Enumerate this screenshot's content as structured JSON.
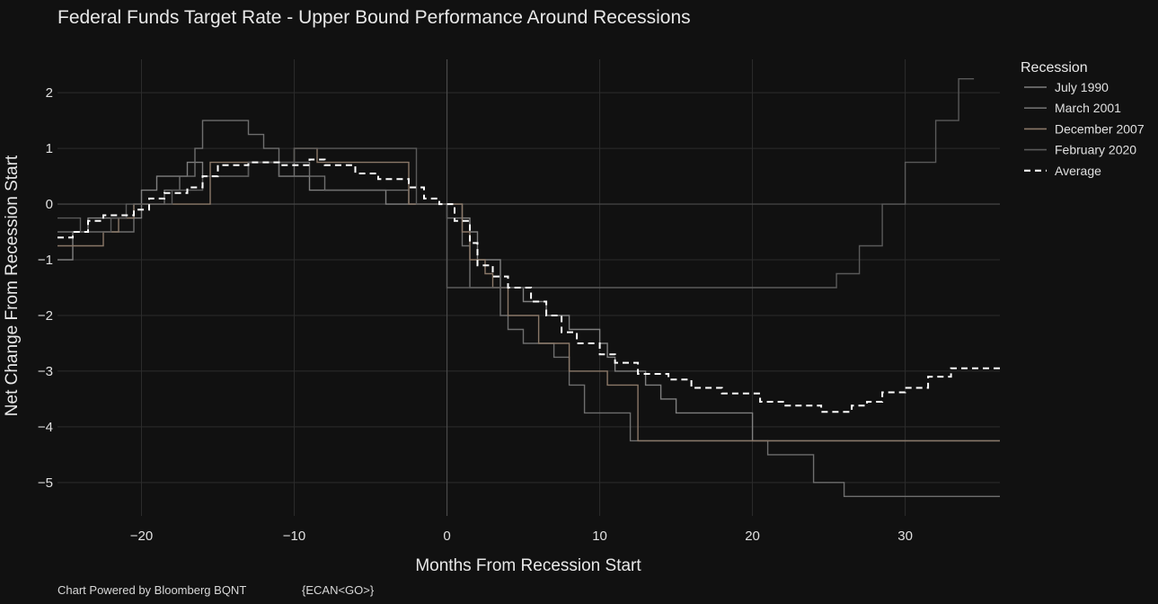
{
  "chart_data": {
    "type": "line",
    "title": "Federal Funds Target Rate - Upper Bound Performance Around Recessions",
    "xlabel": "Months From Recession Start",
    "ylabel": "Net Change From Recession Start",
    "xlim": [
      -25.5,
      36.2
    ],
    "ylim": [
      -5.6,
      2.6
    ],
    "xticks": [
      -20,
      -10,
      0,
      10,
      20,
      30
    ],
    "xtick_labels": [
      "−20",
      "−10",
      "0",
      "10",
      "20",
      "30"
    ],
    "yticks": [
      2,
      1,
      0,
      -1,
      -2,
      -3,
      -4,
      -5
    ],
    "ytick_labels": [
      "2",
      "1",
      "0",
      "−1",
      "−2",
      "−3",
      "−4",
      "−5"
    ],
    "grid": true,
    "legend_title": "Recession",
    "legend_position": "right",
    "series": [
      {
        "name": "July 1990",
        "color": "#7f7f7f",
        "points": [
          [
            -25.5,
            -1
          ],
          [
            -24.5,
            -1
          ],
          [
            -24.5,
            -0.5
          ],
          [
            -23.5,
            -0.5
          ],
          [
            -23.5,
            -0.25
          ],
          [
            -20,
            -0.25
          ],
          [
            -20,
            0.25
          ],
          [
            -19,
            0.25
          ],
          [
            -19,
            0.5
          ],
          [
            -17,
            0.5
          ],
          [
            -17,
            0.75
          ],
          [
            -16,
            0.75
          ],
          [
            -16,
            0.5
          ],
          [
            -13,
            0.5
          ],
          [
            -13,
            0.75
          ],
          [
            -11,
            0.75
          ],
          [
            -11,
            0.5
          ],
          [
            -9,
            0.5
          ],
          [
            -9,
            0.25
          ],
          [
            -4,
            0.25
          ],
          [
            -4,
            0
          ],
          [
            1,
            0
          ],
          [
            1,
            -0.25
          ],
          [
            1.5,
            -0.25
          ],
          [
            1.5,
            -0.5
          ],
          [
            2,
            -0.5
          ],
          [
            2,
            -1
          ],
          [
            3.5,
            -1
          ],
          [
            3.5,
            -1.5
          ],
          [
            5,
            -1.5
          ],
          [
            5,
            -1.75
          ],
          [
            6.5,
            -1.75
          ],
          [
            6.5,
            -2
          ],
          [
            8,
            -2
          ],
          [
            8,
            -2.25
          ],
          [
            10,
            -2.25
          ],
          [
            10,
            -2.5
          ],
          [
            10.5,
            -2.5
          ],
          [
            10.5,
            -2.75
          ],
          [
            11,
            -2.75
          ],
          [
            11,
            -3
          ],
          [
            13,
            -3
          ],
          [
            13,
            -3.25
          ],
          [
            14,
            -3.25
          ],
          [
            14,
            -3.5
          ],
          [
            15,
            -3.5
          ],
          [
            15,
            -3.75
          ],
          [
            20,
            -3.75
          ],
          [
            20,
            -4.25
          ],
          [
            36.2,
            -4.25
          ]
        ]
      },
      {
        "name": "March 2001",
        "color": "#6e6e6e",
        "points": [
          [
            -25.5,
            -0.5
          ],
          [
            -20.5,
            -0.5
          ],
          [
            -20.5,
            0
          ],
          [
            -18.5,
            0
          ],
          [
            -18.5,
            0.25
          ],
          [
            -17.5,
            0.25
          ],
          [
            -17.5,
            0.5
          ],
          [
            -16.5,
            0.5
          ],
          [
            -16.5,
            1
          ],
          [
            -16,
            1
          ],
          [
            -16,
            1.5
          ],
          [
            -13,
            1.5
          ],
          [
            -13,
            1.25
          ],
          [
            -12,
            1.25
          ],
          [
            -12,
            1
          ],
          [
            -11,
            1
          ],
          [
            -11,
            0.5
          ],
          [
            -10,
            0.5
          ],
          [
            -10,
            0.75
          ],
          [
            -9,
            0.75
          ],
          [
            -9,
            0.5
          ],
          [
            -8,
            0.5
          ],
          [
            -8,
            0.25
          ],
          [
            -2.5,
            0.25
          ],
          [
            -2.5,
            0
          ],
          [
            0,
            0
          ],
          [
            0,
            -0.25
          ],
          [
            1,
            -0.25
          ],
          [
            1,
            -0.75
          ],
          [
            1.5,
            -0.75
          ],
          [
            1.5,
            -1.5
          ],
          [
            3.5,
            -1.5
          ],
          [
            3.5,
            -2
          ],
          [
            4,
            -2
          ],
          [
            4,
            -2.25
          ],
          [
            5,
            -2.25
          ],
          [
            5,
            -2.5
          ],
          [
            7,
            -2.5
          ],
          [
            7,
            -2.75
          ],
          [
            8,
            -2.75
          ],
          [
            8,
            -3.25
          ],
          [
            9,
            -3.25
          ],
          [
            9,
            -3.75
          ],
          [
            12,
            -3.75
          ],
          [
            12,
            -4.25
          ],
          [
            21,
            -4.25
          ],
          [
            21,
            -4.5
          ],
          [
            24,
            -4.5
          ],
          [
            24,
            -5
          ],
          [
            26,
            -5
          ],
          [
            26,
            -5.25
          ],
          [
            36.2,
            -5.25
          ]
        ]
      },
      {
        "name": "December 2007",
        "color": "#8a7868",
        "points": [
          [
            -25.5,
            -0.75
          ],
          [
            -22.5,
            -0.75
          ],
          [
            -22.5,
            -0.5
          ],
          [
            -21.5,
            -0.5
          ],
          [
            -21.5,
            -0.25
          ],
          [
            -20.5,
            -0.25
          ],
          [
            -20.5,
            0
          ],
          [
            -15.5,
            0
          ],
          [
            -15.5,
            0.75
          ],
          [
            -10,
            0.75
          ],
          [
            -10,
            1
          ],
          [
            -8.5,
            1
          ],
          [
            -8.5,
            0.75
          ],
          [
            -2.5,
            0.75
          ],
          [
            -2.5,
            0
          ],
          [
            1,
            0
          ],
          [
            1,
            -0.5
          ],
          [
            1.5,
            -0.5
          ],
          [
            1.5,
            -1
          ],
          [
            2.5,
            -1
          ],
          [
            2.5,
            -1.25
          ],
          [
            3,
            -1.25
          ],
          [
            3,
            -1.5
          ],
          [
            4,
            -1.5
          ],
          [
            4,
            -2
          ],
          [
            6,
            -2
          ],
          [
            6,
            -2.5
          ],
          [
            8,
            -2.5
          ],
          [
            8,
            -3
          ],
          [
            10.5,
            -3
          ],
          [
            10.5,
            -3.25
          ],
          [
            12.5,
            -3.25
          ],
          [
            12.5,
            -4.25
          ],
          [
            36.2,
            -4.25
          ]
        ]
      },
      {
        "name": "February 2020",
        "color": "#5a5a5a",
        "points": [
          [
            -25.5,
            -0.25
          ],
          [
            -24,
            -0.25
          ],
          [
            -24,
            -0.5
          ],
          [
            -22,
            -0.5
          ],
          [
            -22,
            -0.25
          ],
          [
            -21,
            -0.25
          ],
          [
            -21,
            0
          ],
          [
            -18,
            0
          ],
          [
            -18,
            0.25
          ],
          [
            -16,
            0.25
          ],
          [
            -16,
            0.5
          ],
          [
            -13,
            0.5
          ],
          [
            -13,
            0.75
          ],
          [
            -10,
            0.75
          ],
          [
            -10,
            1
          ],
          [
            -2,
            1
          ],
          [
            -2,
            0
          ],
          [
            0,
            0
          ],
          [
            0,
            -1.5
          ],
          [
            25.5,
            -1.5
          ],
          [
            25.5,
            -1.25
          ],
          [
            27,
            -1.25
          ],
          [
            27,
            -0.75
          ],
          [
            28.5,
            -0.75
          ],
          [
            28.5,
            0
          ],
          [
            30,
            0
          ],
          [
            30,
            0.75
          ],
          [
            32,
            0.75
          ],
          [
            32,
            1.5
          ],
          [
            33.5,
            1.5
          ],
          [
            33.5,
            2.25
          ],
          [
            34.5,
            2.25
          ]
        ]
      },
      {
        "name": "Average",
        "color": "#ffffff",
        "dashed": true,
        "points": [
          [
            -25.5,
            -0.6
          ],
          [
            -24.5,
            -0.6
          ],
          [
            -24.5,
            -0.5
          ],
          [
            -23.5,
            -0.5
          ],
          [
            -23.5,
            -0.3
          ],
          [
            -22.5,
            -0.3
          ],
          [
            -22.5,
            -0.2
          ],
          [
            -20.5,
            -0.2
          ],
          [
            -20.5,
            -0.1
          ],
          [
            -19.5,
            -0.1
          ],
          [
            -19.5,
            0.1
          ],
          [
            -18.5,
            0.1
          ],
          [
            -18.5,
            0.2
          ],
          [
            -17,
            0.2
          ],
          [
            -17,
            0.3
          ],
          [
            -16,
            0.3
          ],
          [
            -16,
            0.5
          ],
          [
            -15,
            0.5
          ],
          [
            -15,
            0.7
          ],
          [
            -13,
            0.7
          ],
          [
            -13,
            0.75
          ],
          [
            -11,
            0.75
          ],
          [
            -11,
            0.7
          ],
          [
            -9,
            0.7
          ],
          [
            -9,
            0.8
          ],
          [
            -8,
            0.8
          ],
          [
            -8,
            0.7
          ],
          [
            -6,
            0.7
          ],
          [
            -6,
            0.55
          ],
          [
            -4.5,
            0.55
          ],
          [
            -4.5,
            0.45
          ],
          [
            -2.5,
            0.45
          ],
          [
            -2.5,
            0.3
          ],
          [
            -1.5,
            0.3
          ],
          [
            -1.5,
            0.1
          ],
          [
            -0.5,
            0.1
          ],
          [
            -0.5,
            0
          ],
          [
            0.5,
            0
          ],
          [
            0.5,
            -0.3
          ],
          [
            1.5,
            -0.3
          ],
          [
            1.5,
            -0.7
          ],
          [
            2,
            -0.7
          ],
          [
            2,
            -1.1
          ],
          [
            3,
            -1.1
          ],
          [
            3,
            -1.3
          ],
          [
            4,
            -1.3
          ],
          [
            4,
            -1.5
          ],
          [
            5.5,
            -1.5
          ],
          [
            5.5,
            -1.75
          ],
          [
            6.5,
            -1.75
          ],
          [
            6.5,
            -2
          ],
          [
            7.5,
            -2
          ],
          [
            7.5,
            -2.3
          ],
          [
            8.5,
            -2.3
          ],
          [
            8.5,
            -2.5
          ],
          [
            10,
            -2.5
          ],
          [
            10,
            -2.7
          ],
          [
            11,
            -2.7
          ],
          [
            11,
            -2.85
          ],
          [
            12.5,
            -2.85
          ],
          [
            12.5,
            -3.05
          ],
          [
            14.5,
            -3.05
          ],
          [
            14.5,
            -3.15
          ],
          [
            16,
            -3.15
          ],
          [
            16,
            -3.3
          ],
          [
            18,
            -3.3
          ],
          [
            18,
            -3.4
          ],
          [
            20.5,
            -3.4
          ],
          [
            20.5,
            -3.55
          ],
          [
            22,
            -3.55
          ],
          [
            22,
            -3.62
          ],
          [
            24.5,
            -3.62
          ],
          [
            24.5,
            -3.73
          ],
          [
            26.5,
            -3.73
          ],
          [
            26.5,
            -3.62
          ],
          [
            27.5,
            -3.62
          ],
          [
            27.5,
            -3.55
          ],
          [
            28.5,
            -3.55
          ],
          [
            28.5,
            -3.38
          ],
          [
            30,
            -3.38
          ],
          [
            30,
            -3.3
          ],
          [
            31.5,
            -3.3
          ],
          [
            31.5,
            -3.1
          ],
          [
            33,
            -3.1
          ],
          [
            33,
            -2.95
          ],
          [
            36.2,
            -2.95
          ]
        ]
      }
    ]
  },
  "footer": {
    "powered_by": "Chart Powered by Bloomberg BQNT",
    "ticker": "{ECAN<GO>}"
  }
}
